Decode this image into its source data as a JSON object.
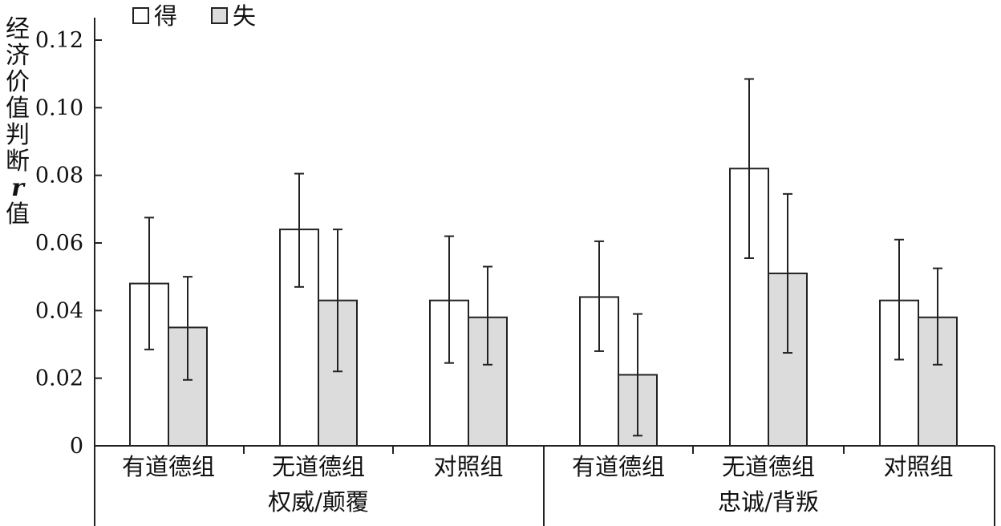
{
  "chart_data": {
    "type": "bar",
    "title": "",
    "xlabel": "",
    "ylabel_chars": [
      "经",
      "济",
      "价",
      "值",
      "判",
      "断",
      "r",
      "值"
    ],
    "ylim": [
      0,
      0.12
    ],
    "yticks": [
      "0",
      "0.02",
      "0.04",
      "0.06",
      "0.08",
      "0.10",
      "0.12"
    ],
    "legend_position": "top-left",
    "series": [
      {
        "name": "得",
        "color": "#ffffff"
      },
      {
        "name": "失",
        "color": "#dcdcdc"
      }
    ],
    "groups": [
      {
        "label": "权威/颠覆",
        "categories": [
          {
            "label": "有道德组",
            "values": [
              0.048,
              0.035
            ],
            "errors": [
              [
                0.0285,
                0.0675
              ],
              [
                0.0195,
                0.05
              ]
            ]
          },
          {
            "label": "无道德组",
            "values": [
              0.064,
              0.043
            ],
            "errors": [
              [
                0.047,
                0.0805
              ],
              [
                0.022,
                0.064
              ]
            ]
          },
          {
            "label": "对照组",
            "values": [
              0.043,
              0.038
            ],
            "errors": [
              [
                0.0245,
                0.062
              ],
              [
                0.024,
                0.053
              ]
            ]
          }
        ]
      },
      {
        "label": "忠诚/背叛",
        "categories": [
          {
            "label": "有道德组",
            "values": [
              0.044,
              0.021
            ],
            "errors": [
              [
                0.028,
                0.0605
              ],
              [
                0.003,
                0.039
              ]
            ]
          },
          {
            "label": "无道德组",
            "values": [
              0.082,
              0.051
            ],
            "errors": [
              [
                0.0555,
                0.1085
              ],
              [
                0.0275,
                0.0745
              ]
            ]
          },
          {
            "label": "对照组",
            "values": [
              0.043,
              0.038
            ],
            "errors": [
              [
                0.0255,
                0.061
              ],
              [
                0.024,
                0.0525
              ]
            ]
          }
        ]
      }
    ]
  }
}
